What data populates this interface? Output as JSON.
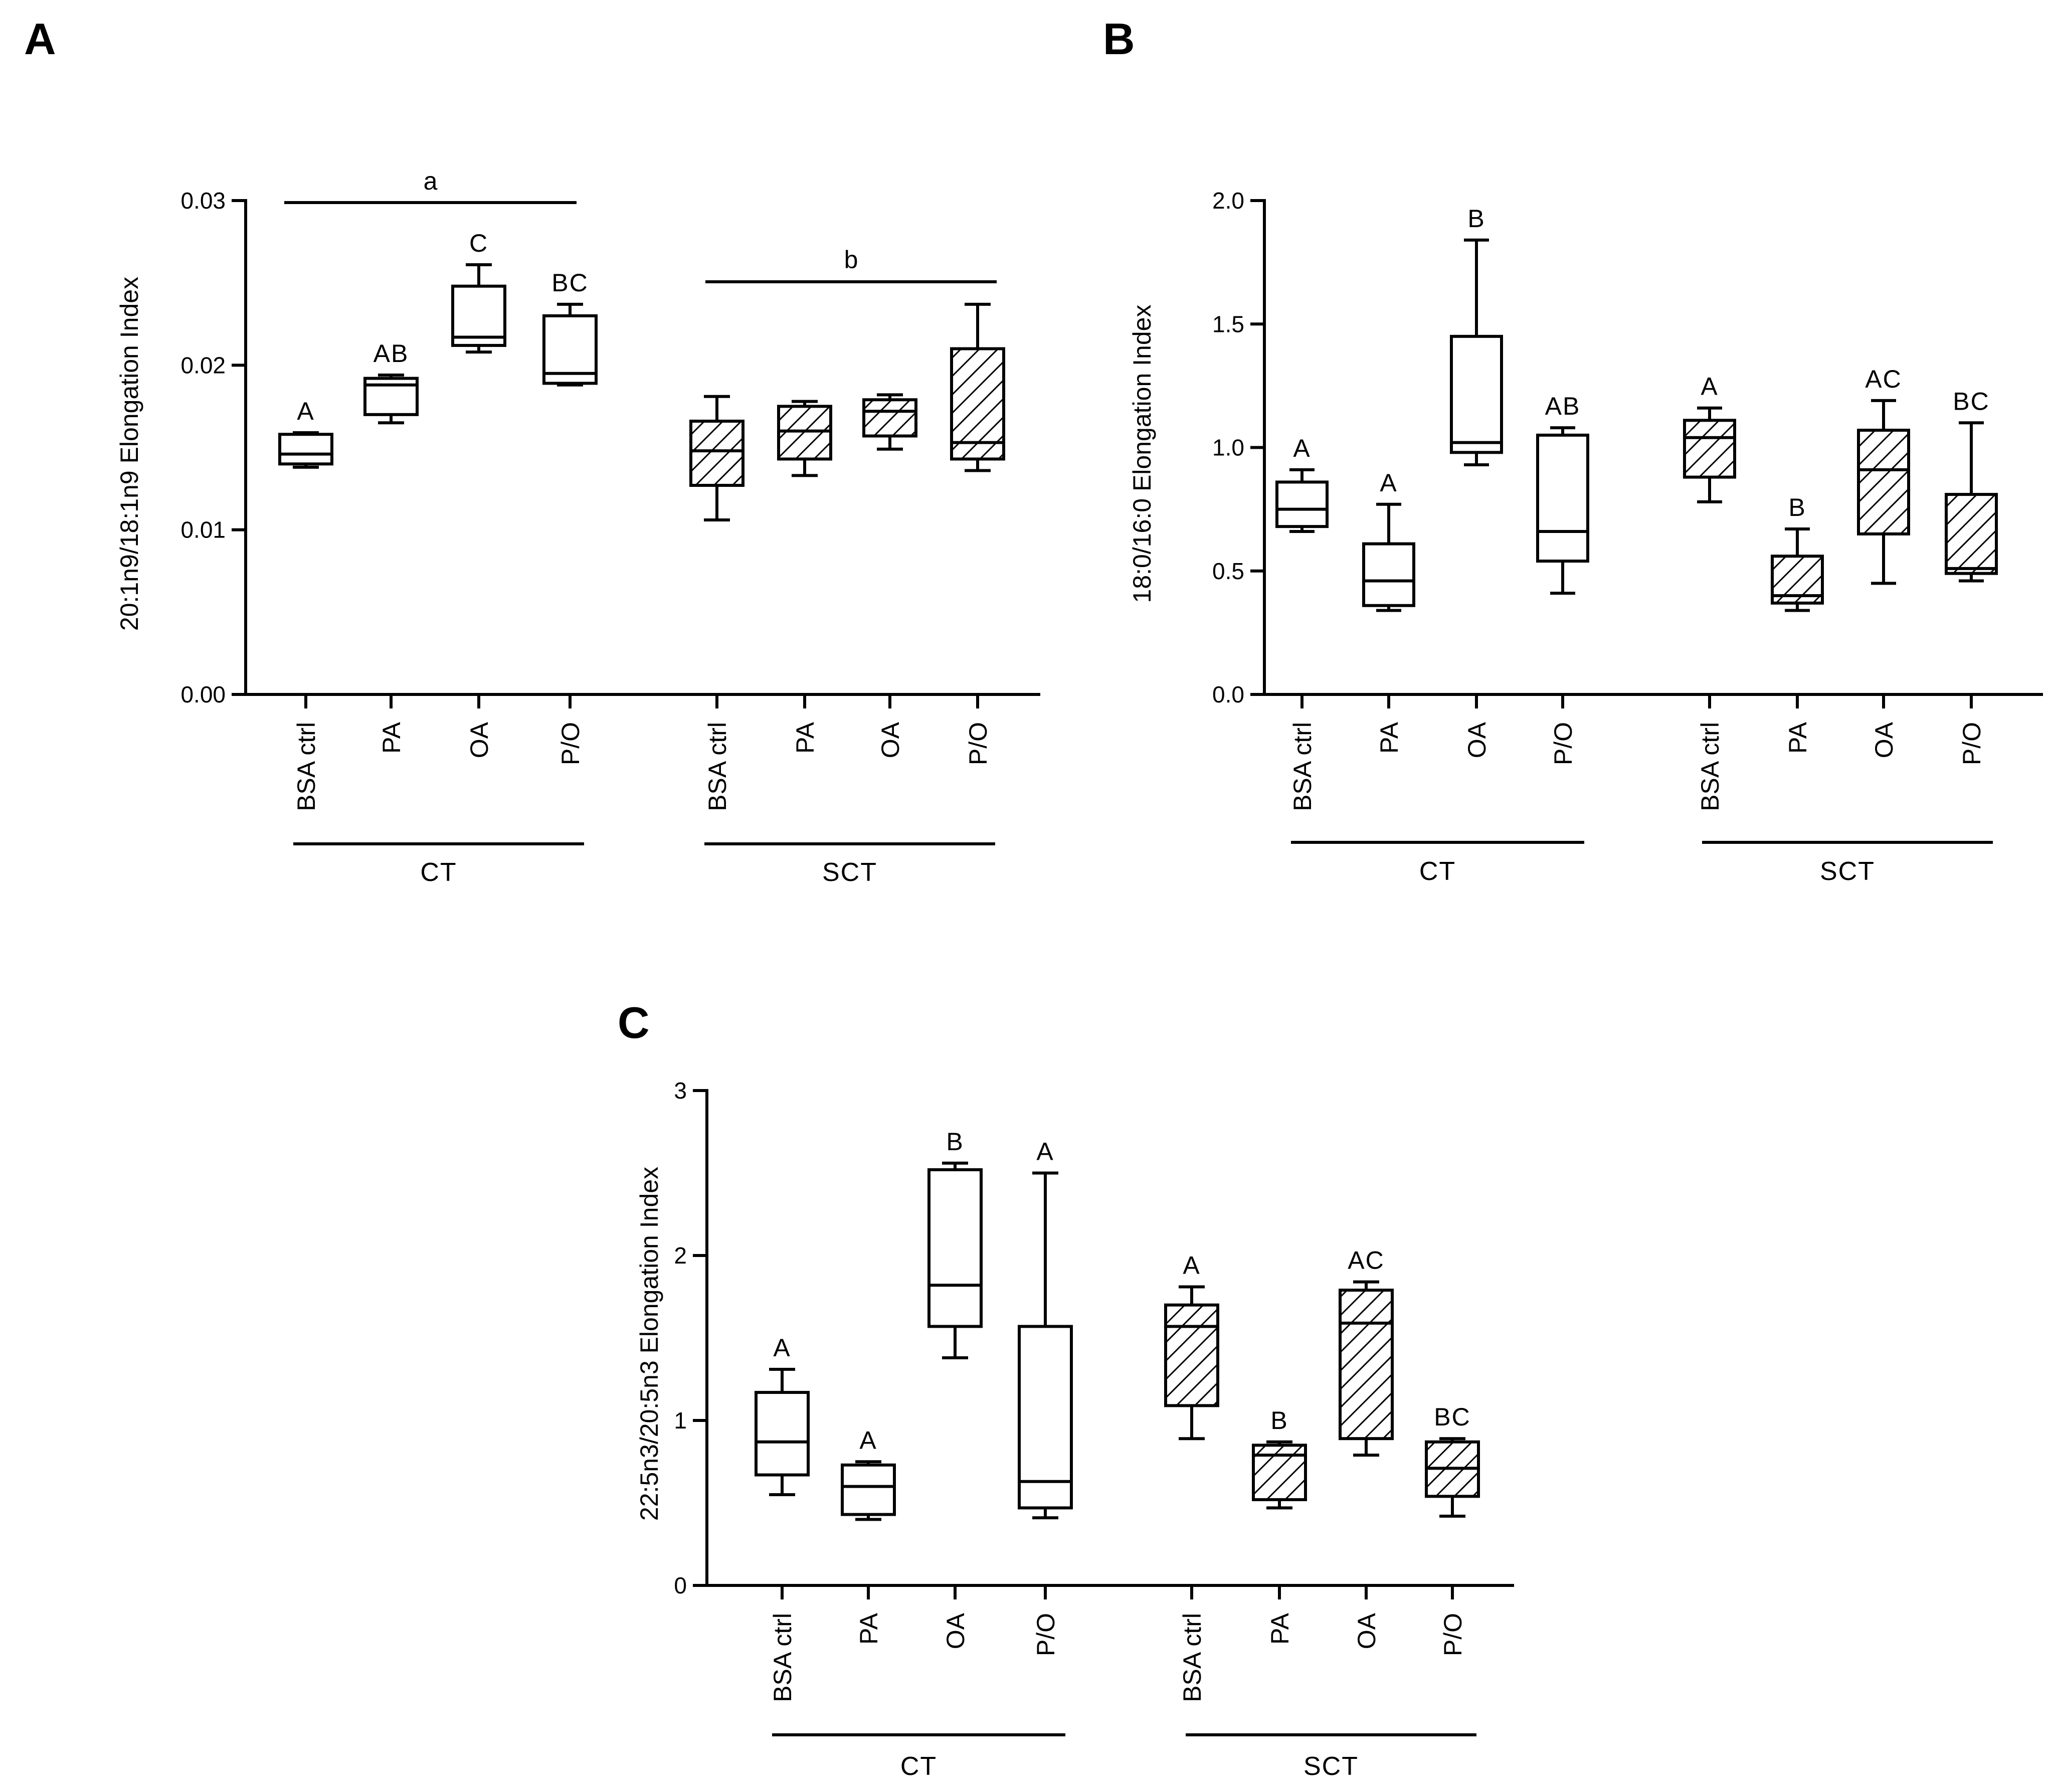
{
  "panels": [
    {
      "letter": "A",
      "ylabel": "20:1n9/18:1n9 Elongation Index",
      "yticks": [
        "0.00",
        "0.01",
        "0.02",
        "0.03"
      ],
      "ylim": [
        0,
        0.03
      ],
      "categories": [
        "BSA ctrl",
        "PA",
        "OA",
        "P/O",
        "BSA ctrl",
        "PA",
        "OA",
        "P/O"
      ],
      "groups": [
        "CT",
        "SCT"
      ],
      "group_sig": [
        "a",
        "b"
      ],
      "letters": [
        "A",
        "AB",
        "C",
        "BC",
        "",
        "",
        "",
        ""
      ]
    },
    {
      "letter": "B",
      "ylabel": "18:0/16:0 Elongation Index",
      "yticks": [
        "0.0",
        "0.5",
        "1.0",
        "1.5",
        "2.0"
      ],
      "ylim": [
        0,
        2.0
      ],
      "categories": [
        "BSA ctrl",
        "PA",
        "OA",
        "P/O",
        "BSA ctrl",
        "PA",
        "OA",
        "P/O"
      ],
      "groups": [
        "CT",
        "SCT"
      ],
      "group_sig": [
        "",
        ""
      ],
      "letters": [
        "A",
        "A",
        "B",
        "AB",
        "A",
        "B",
        "AC",
        "BC"
      ]
    },
    {
      "letter": "C",
      "ylabel": "22:5n3/20:5n3 Elongation  Index",
      "yticks": [
        "0",
        "1",
        "2",
        "3"
      ],
      "ylim": [
        0,
        3
      ],
      "categories": [
        "BSA ctrl",
        "PA",
        "OA",
        "P/O",
        "BSA ctrl",
        "PA",
        "OA",
        "P/O"
      ],
      "groups": [
        "CT",
        "SCT"
      ],
      "group_sig": [
        "",
        ""
      ],
      "letters": [
        "A",
        "A",
        "B",
        "A",
        "A",
        "B",
        "AC",
        "BC"
      ]
    }
  ],
  "chart_data": [
    {
      "type": "box",
      "title": "",
      "xlabel": "",
      "ylabel": "20:1n9/18:1n9 Elongation Index",
      "ylim": [
        0,
        0.03
      ],
      "categories": [
        "BSA ctrl",
        "PA",
        "OA",
        "P/O",
        "BSA ctrl",
        "PA",
        "OA",
        "P/O"
      ],
      "groups": [
        "CT",
        "CT",
        "CT",
        "CT",
        "SCT",
        "SCT",
        "SCT",
        "SCT"
      ],
      "hatched": [
        false,
        false,
        false,
        false,
        true,
        true,
        true,
        true
      ],
      "boxes": [
        {
          "min": 0.0138,
          "q1": 0.014,
          "median": 0.0146,
          "q3": 0.0158,
          "max": 0.0159
        },
        {
          "min": 0.0165,
          "q1": 0.017,
          "median": 0.0188,
          "q3": 0.0192,
          "max": 0.0194
        },
        {
          "min": 0.0208,
          "q1": 0.0212,
          "median": 0.0217,
          "q3": 0.0248,
          "max": 0.0261
        },
        {
          "min": 0.0188,
          "q1": 0.0189,
          "median": 0.0195,
          "q3": 0.023,
          "max": 0.0237
        },
        {
          "min": 0.0106,
          "q1": 0.0127,
          "median": 0.0148,
          "q3": 0.0166,
          "max": 0.0181
        },
        {
          "min": 0.0133,
          "q1": 0.0143,
          "median": 0.016,
          "q3": 0.0175,
          "max": 0.0178
        },
        {
          "min": 0.0149,
          "q1": 0.0157,
          "median": 0.0172,
          "q3": 0.0179,
          "max": 0.0182
        },
        {
          "min": 0.0136,
          "q1": 0.0143,
          "median": 0.0153,
          "q3": 0.021,
          "max": 0.0237
        }
      ],
      "significance_letters": [
        "A",
        "AB",
        "C",
        "BC",
        "",
        "",
        "",
        ""
      ],
      "group_significance": [
        "a",
        "b"
      ],
      "grid": false
    },
    {
      "type": "box",
      "title": "",
      "xlabel": "",
      "ylabel": "18:0/16:0 Elongation Index",
      "ylim": [
        0,
        2.0
      ],
      "categories": [
        "BSA ctrl",
        "PA",
        "OA",
        "P/O",
        "BSA ctrl",
        "PA",
        "OA",
        "P/O"
      ],
      "groups": [
        "CT",
        "CT",
        "CT",
        "CT",
        "SCT",
        "SCT",
        "SCT",
        "SCT"
      ],
      "hatched": [
        false,
        false,
        false,
        false,
        true,
        true,
        true,
        true
      ],
      "boxes": [
        {
          "min": 0.66,
          "q1": 0.68,
          "median": 0.75,
          "q3": 0.86,
          "max": 0.91
        },
        {
          "min": 0.34,
          "q1": 0.36,
          "median": 0.46,
          "q3": 0.61,
          "max": 0.77
        },
        {
          "min": 0.93,
          "q1": 0.98,
          "median": 1.02,
          "q3": 1.45,
          "max": 1.84
        },
        {
          "min": 0.41,
          "q1": 0.54,
          "median": 0.66,
          "q3": 1.05,
          "max": 1.08
        },
        {
          "min": 0.78,
          "q1": 0.88,
          "median": 1.04,
          "q3": 1.11,
          "max": 1.16
        },
        {
          "min": 0.34,
          "q1": 0.37,
          "median": 0.4,
          "q3": 0.56,
          "max": 0.67
        },
        {
          "min": 0.45,
          "q1": 0.65,
          "median": 0.91,
          "q3": 1.07,
          "max": 1.19
        },
        {
          "min": 0.46,
          "q1": 0.49,
          "median": 0.51,
          "q3": 0.81,
          "max": 1.1
        }
      ],
      "significance_letters": [
        "A",
        "A",
        "B",
        "AB",
        "A",
        "B",
        "AC",
        "BC"
      ],
      "grid": false
    },
    {
      "type": "box",
      "title": "",
      "xlabel": "",
      "ylabel": "22:5n3/20:5n3 Elongation  Index",
      "ylim": [
        0,
        3
      ],
      "categories": [
        "BSA ctrl",
        "PA",
        "OA",
        "P/O",
        "BSA ctrl",
        "PA",
        "OA",
        "P/O"
      ],
      "groups": [
        "CT",
        "CT",
        "CT",
        "CT",
        "SCT",
        "SCT",
        "SCT",
        "SCT"
      ],
      "hatched": [
        false,
        false,
        false,
        false,
        true,
        true,
        true,
        true
      ],
      "boxes": [
        {
          "min": 0.55,
          "q1": 0.67,
          "median": 0.87,
          "q3": 1.17,
          "max": 1.31
        },
        {
          "min": 0.4,
          "q1": 0.43,
          "median": 0.6,
          "q3": 0.73,
          "max": 0.75
        },
        {
          "min": 1.38,
          "q1": 1.57,
          "median": 1.82,
          "q3": 2.52,
          "max": 2.56
        },
        {
          "min": 0.41,
          "q1": 0.47,
          "median": 0.63,
          "q3": 1.57,
          "max": 2.5
        },
        {
          "min": 0.89,
          "q1": 1.09,
          "median": 1.57,
          "q3": 1.7,
          "max": 1.81
        },
        {
          "min": 0.47,
          "q1": 0.52,
          "median": 0.79,
          "q3": 0.85,
          "max": 0.87
        },
        {
          "min": 0.79,
          "q1": 0.89,
          "median": 1.59,
          "q3": 1.79,
          "max": 1.84
        },
        {
          "min": 0.42,
          "q1": 0.54,
          "median": 0.71,
          "q3": 0.87,
          "max": 0.89
        }
      ],
      "significance_letters": [
        "A",
        "A",
        "B",
        "A",
        "A",
        "B",
        "AC",
        "BC"
      ],
      "grid": false
    }
  ]
}
